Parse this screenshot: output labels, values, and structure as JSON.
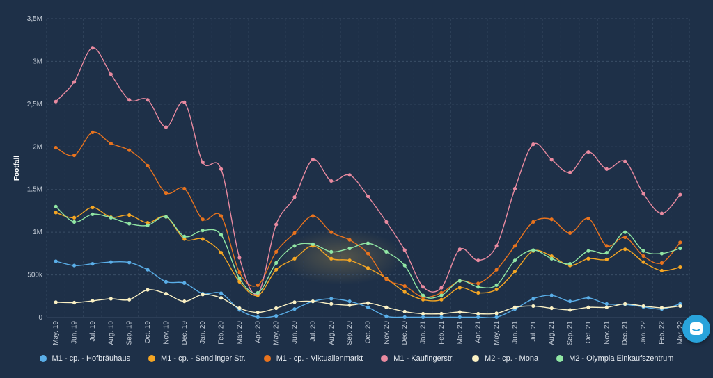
{
  "chart_data": {
    "type": "line",
    "title": "",
    "xlabel": "",
    "ylabel": "Footfall",
    "ylim": [
      0,
      3500000
    ],
    "y_ticks": [
      0,
      500000,
      1000000,
      1500000,
      2000000,
      2500000,
      3000000,
      3500000
    ],
    "y_tick_labels": [
      "0",
      "500k",
      "1M",
      "1,5M",
      "2M",
      "2,5M",
      "3M",
      "3,5M"
    ],
    "categories": [
      "May. 19",
      "Jun. 19",
      "Jul. 19",
      "Aug. 19",
      "Sep. 19",
      "Oct. 19",
      "Nov. 19",
      "Dec. 19",
      "Jan. 20",
      "Feb. 20",
      "Mar. 20",
      "Apr. 20",
      "May. 20",
      "Jun. 20",
      "Jul. 20",
      "Aug. 20",
      "Sep. 20",
      "Oct. 20",
      "Nov. 20",
      "Dec. 20",
      "Jan. 21",
      "Feb. 21",
      "Mar. 21",
      "Apr. 21",
      "May. 21",
      "Jun. 21",
      "Jul. 21",
      "Aug. 21",
      "Sep. 21",
      "Oct. 21",
      "Nov. 21",
      "Dec. 21",
      "Jan. 22",
      "Feb. 22",
      "Mar. 22"
    ],
    "grid": true,
    "legend_position": "bottom",
    "series": [
      {
        "name": "M1 - cp. - Hofbräuhaus",
        "color": "#5aaee8",
        "values": [
          660000,
          610000,
          630000,
          650000,
          645000,
          560000,
          420000,
          405000,
          280000,
          285000,
          90000,
          5000,
          20000,
          100000,
          190000,
          220000,
          190000,
          120000,
          15000,
          5000,
          5000,
          5000,
          5000,
          5000,
          5000,
          100000,
          220000,
          260000,
          190000,
          230000,
          160000,
          155000,
          125000,
          100000,
          160000
        ]
      },
      {
        "name": "M1 - cp. - Sendlinger Str.",
        "color": "#f5a623",
        "values": [
          1230000,
          1170000,
          1290000,
          1175000,
          1200000,
          1110000,
          1180000,
          920000,
          920000,
          760000,
          420000,
          260000,
          560000,
          690000,
          840000,
          690000,
          670000,
          580000,
          460000,
          300000,
          210000,
          210000,
          350000,
          290000,
          330000,
          540000,
          780000,
          720000,
          610000,
          690000,
          680000,
          800000,
          650000,
          550000,
          590000
        ]
      },
      {
        "name": "M1 - cp. - Viktualienmarkt",
        "color": "#e8731e",
        "values": [
          1990000,
          1900000,
          2170000,
          2040000,
          1960000,
          1780000,
          1460000,
          1510000,
          1150000,
          1190000,
          530000,
          380000,
          770000,
          990000,
          1190000,
          1000000,
          910000,
          750000,
          450000,
          370000,
          240000,
          290000,
          430000,
          400000,
          560000,
          840000,
          1120000,
          1150000,
          990000,
          1160000,
          840000,
          940000,
          720000,
          640000,
          880000
        ]
      },
      {
        "name": "M1 - Kaufingerstr.",
        "color": "#e98aa0",
        "values": [
          2530000,
          2760000,
          3160000,
          2850000,
          2550000,
          2550000,
          2230000,
          2520000,
          1820000,
          1740000,
          700000,
          280000,
          1090000,
          1410000,
          1850000,
          1600000,
          1670000,
          1420000,
          1120000,
          790000,
          360000,
          350000,
          800000,
          670000,
          840000,
          1510000,
          2030000,
          1850000,
          1700000,
          1940000,
          1740000,
          1830000,
          1450000,
          1220000,
          1440000
        ]
      },
      {
        "name": "M2 - cp. - Mona",
        "color": "#fbf1c4",
        "values": [
          180000,
          175000,
          195000,
          220000,
          210000,
          325000,
          280000,
          190000,
          270000,
          230000,
          110000,
          60000,
          110000,
          180000,
          190000,
          160000,
          145000,
          170000,
          120000,
          70000,
          45000,
          45000,
          65000,
          45000,
          50000,
          120000,
          135000,
          110000,
          90000,
          120000,
          120000,
          160000,
          135000,
          115000,
          135000
        ]
      },
      {
        "name": "M2 - Olympia Einkaufszentrum",
        "color": "#90e6a4",
        "values": [
          1300000,
          1120000,
          1210000,
          1170000,
          1100000,
          1080000,
          1180000,
          950000,
          1020000,
          970000,
          460000,
          290000,
          640000,
          840000,
          860000,
          770000,
          810000,
          870000,
          770000,
          610000,
          260000,
          260000,
          430000,
          360000,
          380000,
          670000,
          790000,
          690000,
          630000,
          780000,
          760000,
          1000000,
          780000,
          750000,
          810000
        ]
      }
    ]
  },
  "icons": {
    "chat": "chat-bubble-icon"
  }
}
